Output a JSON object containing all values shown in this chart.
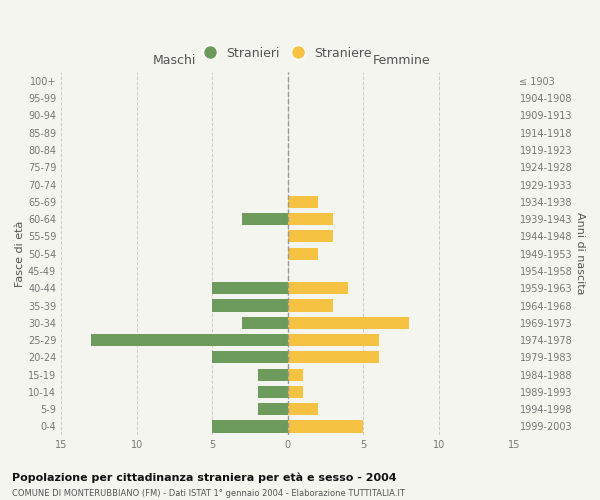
{
  "age_groups": [
    "100+",
    "95-99",
    "90-94",
    "85-89",
    "80-84",
    "75-79",
    "70-74",
    "65-69",
    "60-64",
    "55-59",
    "50-54",
    "45-49",
    "40-44",
    "35-39",
    "30-34",
    "25-29",
    "20-24",
    "15-19",
    "10-14",
    "5-9",
    "0-4"
  ],
  "birth_years": [
    "≤ 1903",
    "1904-1908",
    "1909-1913",
    "1914-1918",
    "1919-1923",
    "1924-1928",
    "1929-1933",
    "1934-1938",
    "1939-1943",
    "1944-1948",
    "1949-1953",
    "1954-1958",
    "1959-1963",
    "1964-1968",
    "1969-1973",
    "1974-1978",
    "1979-1983",
    "1984-1988",
    "1989-1993",
    "1994-1998",
    "1999-2003"
  ],
  "maschi": [
    0,
    0,
    0,
    0,
    0,
    0,
    0,
    0,
    3,
    0,
    0,
    0,
    5,
    5,
    3,
    13,
    5,
    2,
    2,
    2,
    5
  ],
  "femmine": [
    0,
    0,
    0,
    0,
    0,
    0,
    0,
    2,
    3,
    3,
    2,
    0,
    4,
    3,
    8,
    6,
    6,
    1,
    1,
    2,
    5
  ],
  "color_maschi": "#6d9b5c",
  "color_femmine": "#f5c242",
  "title_main": "Popolazione per cittadinanza straniera per età e sesso - 2004",
  "title_sub": "COMUNE DI MONTERUBBIANO (FM) - Dati ISTAT 1° gennaio 2004 - Elaborazione TUTTITALIA.IT",
  "xlabel_left": "Maschi",
  "xlabel_right": "Femmine",
  "ylabel_left": "Fasce di età",
  "ylabel_right": "Anni di nascita",
  "legend_maschi": "Stranieri",
  "legend_femmine": "Straniere",
  "xlim": 15,
  "background_color": "#f5f5f0",
  "grid_color": "#cccccc"
}
